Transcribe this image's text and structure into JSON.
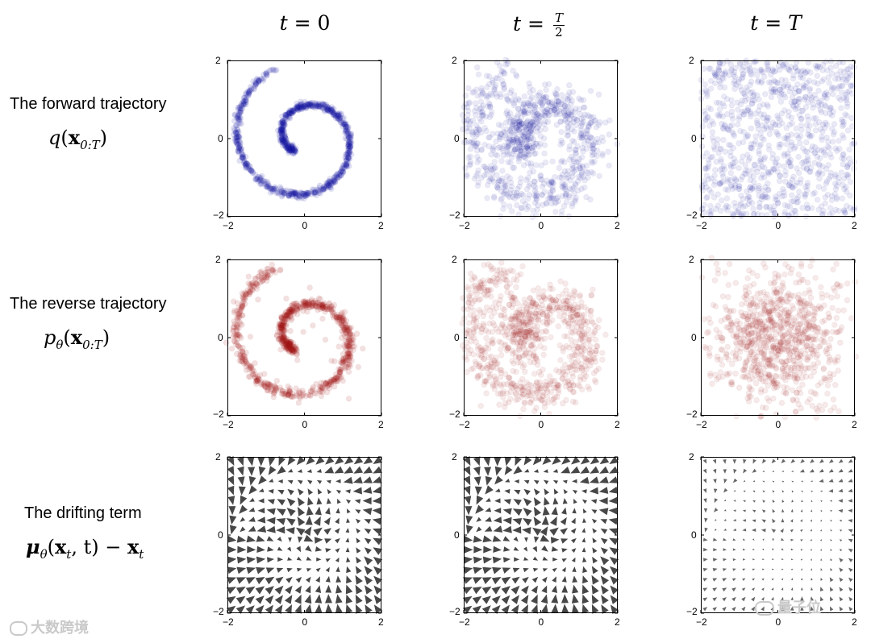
{
  "columns": [
    {
      "prefix": "t = ",
      "value": "0"
    },
    {
      "prefix": "t = ",
      "num": "T",
      "den": "2"
    },
    {
      "prefix": "t = ",
      "value": "T"
    }
  ],
  "rows": [
    {
      "title": "The forward trajectory",
      "math_fn": "q",
      "math_sub": "",
      "math_arg": "x",
      "math_arg_sub": "0:T"
    },
    {
      "title": "The reverse trajectory",
      "math_fn": "p",
      "math_sub": "θ",
      "math_arg": "x",
      "math_arg_sub": "0:T"
    },
    {
      "title": "The drifting term",
      "math_fn": "μ",
      "math_sub": "θ",
      "math_arg": "x",
      "math_arg_sub": "t",
      "math_tail": ", t) − "
    }
  ],
  "ticks": {
    "xmin": "−2",
    "xmid": "0",
    "xmax": "2",
    "ymin": "−2",
    "ymid": "0",
    "ymax": "2"
  },
  "colors": {
    "forward": "#1a1aa0",
    "reverse": "#a01a1a",
    "arrow": "#333333"
  },
  "watermarks": {
    "left": "大数跨境",
    "right": "量子位"
  },
  "chart_data": [
    {
      "type": "scatter",
      "row": "forward",
      "t": "0",
      "distribution": "spiral",
      "series_color": "#1a1aa0",
      "xlim": [
        -2,
        2
      ],
      "ylim": [
        -2,
        2
      ]
    },
    {
      "type": "scatter",
      "row": "forward",
      "t": "T/2",
      "distribution": "noisy spiral",
      "series_color": "#1a1aa0",
      "xlim": [
        -2,
        2
      ],
      "ylim": [
        -2,
        2
      ]
    },
    {
      "type": "scatter",
      "row": "forward",
      "t": "T",
      "distribution": "uniform noise",
      "series_color": "#1a1aa0",
      "xlim": [
        -2,
        2
      ],
      "ylim": [
        -2,
        2
      ]
    },
    {
      "type": "scatter",
      "row": "reverse",
      "t": "0",
      "distribution": "spiral",
      "series_color": "#a01a1a",
      "xlim": [
        -2,
        2
      ],
      "ylim": [
        -2,
        2
      ]
    },
    {
      "type": "scatter",
      "row": "reverse",
      "t": "T/2",
      "distribution": "noisy spiral",
      "series_color": "#a01a1a",
      "xlim": [
        -2,
        2
      ],
      "ylim": [
        -2,
        2
      ]
    },
    {
      "type": "scatter",
      "row": "reverse",
      "t": "T",
      "distribution": "gaussian noise",
      "series_color": "#a01a1a",
      "xlim": [
        -2,
        2
      ],
      "ylim": [
        -2,
        2
      ]
    },
    {
      "type": "quiver",
      "row": "drift",
      "t": "0",
      "magnitude": "large",
      "xlim": [
        -2,
        2
      ],
      "ylim": [
        -2,
        2
      ]
    },
    {
      "type": "quiver",
      "row": "drift",
      "t": "T/2",
      "magnitude": "large",
      "xlim": [
        -2,
        2
      ],
      "ylim": [
        -2,
        2
      ]
    },
    {
      "type": "quiver",
      "row": "drift",
      "t": "T",
      "magnitude": "small",
      "xlim": [
        -2,
        2
      ],
      "ylim": [
        -2,
        2
      ]
    }
  ]
}
